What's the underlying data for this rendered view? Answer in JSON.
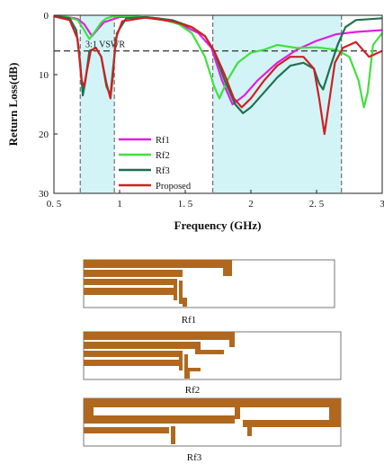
{
  "chart_data": {
    "type": "line",
    "xlabel": "Frequency (GHz)",
    "ylabel": "Return Loss(dB)",
    "xlim": [
      0.5,
      3
    ],
    "ylim": [
      30,
      0
    ],
    "x_ticks": [
      "0. 5",
      "1",
      "1. 5",
      "2",
      "2. 5",
      "3"
    ],
    "y_ticks": [
      "0",
      "10",
      "20",
      "30"
    ],
    "grid": false,
    "legend_position": "lower-left",
    "vswr_line": {
      "y": 6,
      "label": "3:1 VSWR"
    },
    "bands": [
      {
        "x0": 0.7,
        "x1": 0.96,
        "color": "#d3f4f7"
      },
      {
        "x0": 1.71,
        "x1": 2.69,
        "color": "#d3f4f7"
      }
    ],
    "series": [
      {
        "name": "Rf1",
        "color": "#e020e0",
        "x": [
          0.5,
          0.6,
          0.68,
          0.73,
          0.79,
          0.84,
          0.88,
          0.93,
          1.0,
          1.1,
          1.3,
          1.45,
          1.6,
          1.7,
          1.78,
          1.86,
          1.95,
          2.05,
          2.2,
          2.35,
          2.5,
          2.65,
          2.8,
          3.0
        ],
        "y": [
          0.2,
          0.3,
          0.6,
          1.5,
          3.5,
          2.2,
          1.2,
          0.8,
          0.3,
          0.2,
          0.6,
          1.4,
          3.0,
          5.5,
          11.0,
          15.0,
          13.5,
          11.0,
          8.0,
          5.8,
          4.3,
          3.2,
          2.8,
          2.5
        ]
      },
      {
        "name": "Rf2",
        "color": "#40e040",
        "x": [
          0.5,
          0.6,
          0.68,
          0.73,
          0.77,
          0.82,
          0.86,
          0.9,
          0.95,
          1.0,
          1.1,
          1.3,
          1.45,
          1.55,
          1.65,
          1.72,
          1.76,
          1.82,
          1.9,
          2.0,
          2.1,
          2.2,
          2.35,
          2.5,
          2.65,
          2.75,
          2.82,
          2.86,
          2.89,
          2.93,
          3.0
        ],
        "y": [
          0.2,
          0.3,
          0.8,
          2.5,
          4.0,
          2.5,
          1.2,
          0.5,
          0.2,
          0.1,
          0.2,
          0.5,
          1.5,
          3.0,
          7.0,
          12.0,
          14.0,
          11.0,
          8.0,
          6.3,
          5.8,
          5.0,
          5.5,
          5.4,
          5.8,
          7.0,
          11.0,
          15.5,
          13.0,
          5.0,
          3.0
        ]
      },
      {
        "name": "Rf3",
        "color": "#207050",
        "x": [
          0.5,
          0.62,
          0.67,
          0.7,
          0.72,
          0.74,
          0.77,
          0.82,
          0.86,
          0.9,
          0.93,
          0.95,
          0.98,
          1.05,
          1.2,
          1.4,
          1.55,
          1.65,
          1.72,
          1.8,
          1.88,
          1.94,
          2.0,
          2.1,
          2.2,
          2.3,
          2.4,
          2.48,
          2.52,
          2.55,
          2.6,
          2.66,
          2.72,
          2.8,
          3.0
        ],
        "y": [
          0.1,
          0.5,
          2.5,
          8.0,
          13.5,
          11.0,
          6.0,
          5.5,
          7.0,
          12.0,
          13.5,
          9.0,
          3.0,
          0.5,
          0.3,
          0.8,
          2.0,
          3.5,
          6.0,
          11.0,
          15.0,
          16.5,
          15.5,
          13.0,
          10.5,
          8.5,
          8.0,
          9.0,
          11.5,
          12.5,
          9.0,
          5.0,
          2.0,
          0.8,
          0.5
        ]
      },
      {
        "name": "Proposed",
        "color": "#d02020",
        "x": [
          0.5,
          0.62,
          0.68,
          0.71,
          0.73,
          0.75,
          0.78,
          0.82,
          0.86,
          0.9,
          0.93,
          0.95,
          0.97,
          1.02,
          1.2,
          1.4,
          1.55,
          1.65,
          1.72,
          1.8,
          1.87,
          1.93,
          2.0,
          2.1,
          2.2,
          2.3,
          2.4,
          2.48,
          2.52,
          2.56,
          2.6,
          2.64,
          2.7,
          2.8,
          2.9,
          3.0
        ],
        "y": [
          0.2,
          0.8,
          4.0,
          11.0,
          12.0,
          9.5,
          6.0,
          5.5,
          7.0,
          11.5,
          14.0,
          10.0,
          4.0,
          1.0,
          0.4,
          1.0,
          2.0,
          3.5,
          6.0,
          10.0,
          14.0,
          15.5,
          14.0,
          11.0,
          8.5,
          7.0,
          7.0,
          9.0,
          14.0,
          20.0,
          14.0,
          8.0,
          5.5,
          4.5,
          7.0,
          6.0
        ]
      }
    ]
  },
  "diagrams": [
    {
      "caption": "Rf1"
    },
    {
      "caption": "Rf2"
    },
    {
      "caption": "Rf3"
    }
  ]
}
